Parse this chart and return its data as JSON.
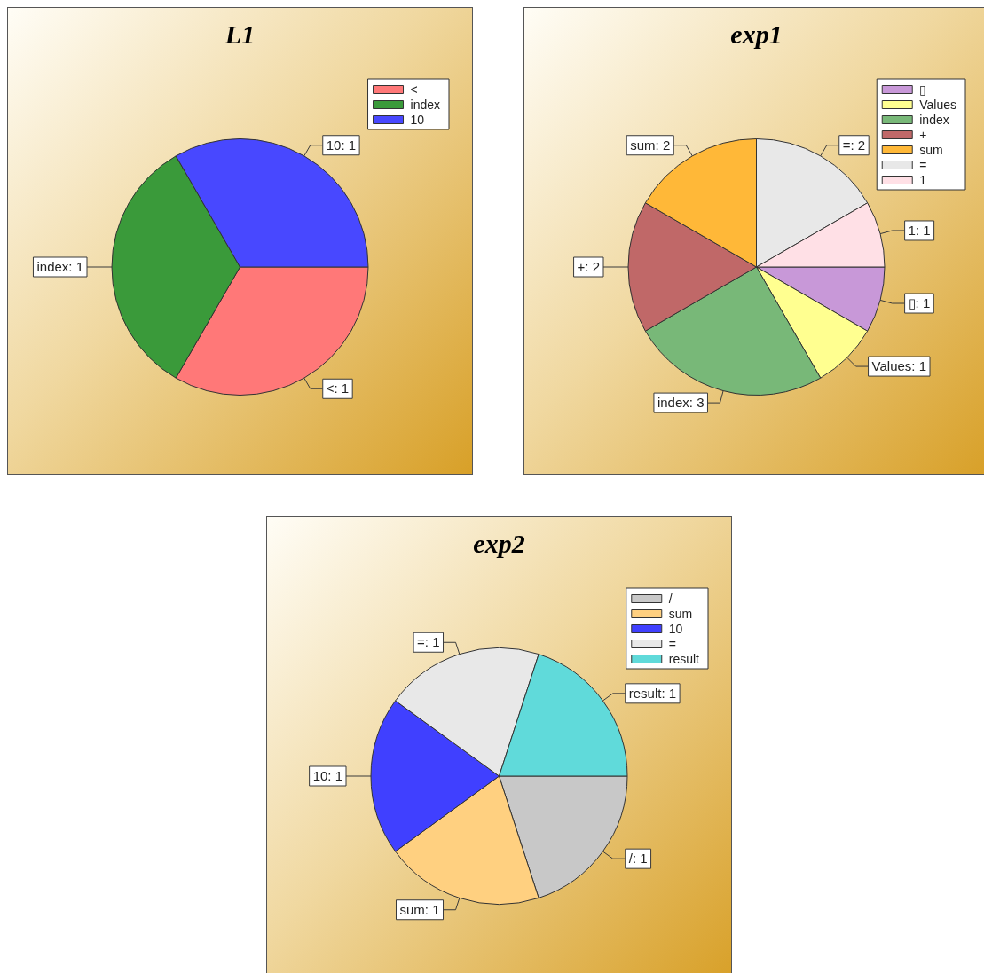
{
  "chart_data": [
    {
      "type": "pie",
      "title": "L1",
      "categories": [
        "<",
        "index",
        "10"
      ],
      "values": [
        1,
        1,
        1
      ],
      "value_labels": [
        "<: 1",
        "index: 1",
        "10: 1"
      ],
      "colors": [
        "#ff7878",
        "#3a9a3a",
        "#4848ff"
      ],
      "legend": "top right"
    },
    {
      "type": "pie",
      "title": "exp1",
      "categories": [
        "▯",
        "Values",
        "index",
        "+",
        "sum",
        "=",
        "1"
      ],
      "values": [
        1,
        1,
        3,
        2,
        2,
        2,
        1
      ],
      "value_labels": [
        "▯: 1",
        "Values: 1",
        "index: 3",
        "+: 2",
        "sum: 2",
        "=: 2",
        "1: 1"
      ],
      "colors": [
        "#c898d8",
        "#ffff90",
        "#78b878",
        "#c06868",
        "#ffb838",
        "#e8e8e8",
        "#ffe0e6"
      ],
      "legend": "top right"
    },
    {
      "type": "pie",
      "title": "exp2",
      "categories": [
        "/",
        "sum",
        "10",
        "=",
        "result"
      ],
      "values": [
        1,
        1,
        1,
        1,
        1
      ],
      "value_labels": [
        "/: 1",
        "sum: 1",
        "10: 1",
        "=: 1",
        "result: 1"
      ],
      "colors": [
        "#c8c8c8",
        "#ffd080",
        "#4040ff",
        "#e8e8e8",
        "#60dada"
      ],
      "legend": "top right"
    }
  ]
}
